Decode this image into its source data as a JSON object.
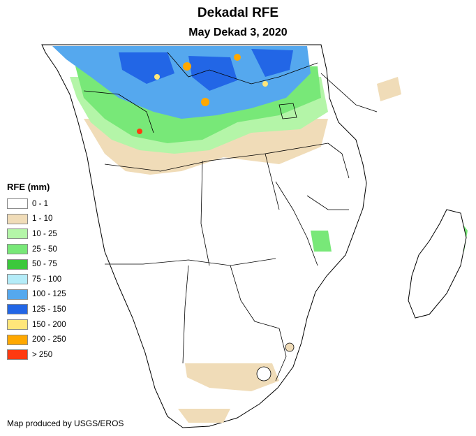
{
  "title": "Dekadal RFE",
  "subtitle": "May Dekad 3, 2020",
  "legend": {
    "title": "RFE (mm)",
    "items": [
      {
        "label": "0 - 1",
        "color": "#ffffff"
      },
      {
        "label": "1 - 10",
        "color": "#f0dcb8"
      },
      {
        "label": "10 - 25",
        "color": "#b4f5a8"
      },
      {
        "label": "25 - 50",
        "color": "#78e878"
      },
      {
        "label": "50 - 75",
        "color": "#3cc83c"
      },
      {
        "label": "75 - 100",
        "color": "#b4ecf8"
      },
      {
        "label": "100 - 125",
        "color": "#55a8ee"
      },
      {
        "label": "125 - 150",
        "color": "#2266e6"
      },
      {
        "label": "150 - 200",
        "color": "#ffe67a"
      },
      {
        "label": "200 - 250",
        "color": "#ffa800"
      },
      {
        "label": "> 250",
        "color": "#ff3a10"
      }
    ]
  },
  "credit": "Map produced by USGS/EROS"
}
